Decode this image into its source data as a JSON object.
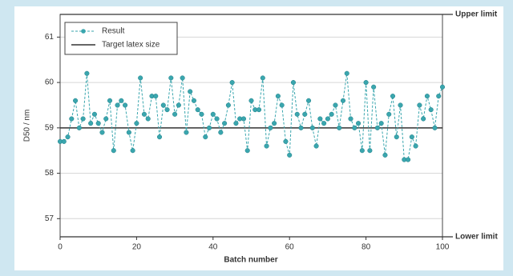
{
  "chart_data": {
    "type": "line",
    "xlabel": "Batch number",
    "ylabel": "D50 / nm",
    "x": [
      0,
      1,
      2,
      3,
      4,
      5,
      6,
      7,
      8,
      9,
      10,
      11,
      12,
      13,
      14,
      15,
      16,
      17,
      18,
      19,
      20,
      21,
      22,
      23,
      24,
      25,
      26,
      27,
      28,
      29,
      30,
      31,
      32,
      33,
      34,
      35,
      36,
      37,
      38,
      39,
      40,
      41,
      42,
      43,
      44,
      45,
      46,
      47,
      48,
      49,
      50,
      51,
      52,
      53,
      54,
      55,
      56,
      57,
      58,
      59,
      60,
      61,
      62,
      63,
      64,
      65,
      66,
      67,
      68,
      69,
      70,
      71,
      72,
      73,
      74,
      75,
      76,
      77,
      78,
      79,
      80,
      81,
      82,
      83,
      84,
      85,
      86,
      87,
      88,
      89,
      90,
      91,
      92,
      93,
      94,
      95,
      96,
      97,
      98,
      99,
      100
    ],
    "series": [
      {
        "name": "Result",
        "color": "#3aa6ae",
        "values": [
          58.7,
          58.7,
          58.8,
          59.2,
          59.6,
          59.0,
          59.2,
          60.2,
          59.1,
          59.3,
          59.1,
          58.9,
          59.2,
          59.6,
          58.5,
          59.5,
          59.6,
          59.5,
          58.9,
          58.5,
          59.1,
          60.1,
          59.3,
          59.2,
          59.7,
          59.7,
          58.8,
          59.5,
          59.4,
          60.1,
          59.3,
          59.5,
          60.1,
          58.9,
          59.8,
          59.6,
          59.4,
          59.3,
          58.8,
          59.0,
          59.3,
          59.2,
          58.9,
          59.1,
          59.5,
          60.0,
          59.1,
          59.2,
          59.2,
          58.5,
          59.6,
          59.4,
          59.4,
          60.1,
          58.6,
          59.0,
          59.1,
          59.7,
          59.5,
          58.7,
          58.4,
          60.0,
          59.3,
          59.0,
          59.3,
          59.6,
          59.0,
          58.6,
          59.2,
          59.1,
          59.2,
          59.3,
          59.5,
          59.0,
          59.6,
          60.2,
          59.2,
          59.0,
          59.1,
          58.5,
          60.0,
          58.5,
          59.9,
          59.0,
          59.1,
          58.4,
          59.3,
          59.7,
          58.8,
          59.5,
          58.3,
          58.3,
          58.8,
          58.6,
          59.5,
          59.2,
          59.7,
          59.4,
          59.0,
          59.7,
          59.9
        ]
      }
    ],
    "target": {
      "name": "Target latex size",
      "value": 59,
      "color": "#333333"
    },
    "upper_limit": {
      "label": "Upper limit",
      "value": 61.5
    },
    "lower_limit": {
      "label": "Lower limit",
      "value": 56.6
    },
    "xlim": [
      0,
      100
    ],
    "xticks": [
      0,
      20,
      40,
      60,
      80,
      100
    ],
    "ylim": [
      56.6,
      61.5
    ],
    "yticks": [
      57,
      58,
      59,
      60,
      61
    ],
    "grid": true,
    "legend": "upper left"
  }
}
